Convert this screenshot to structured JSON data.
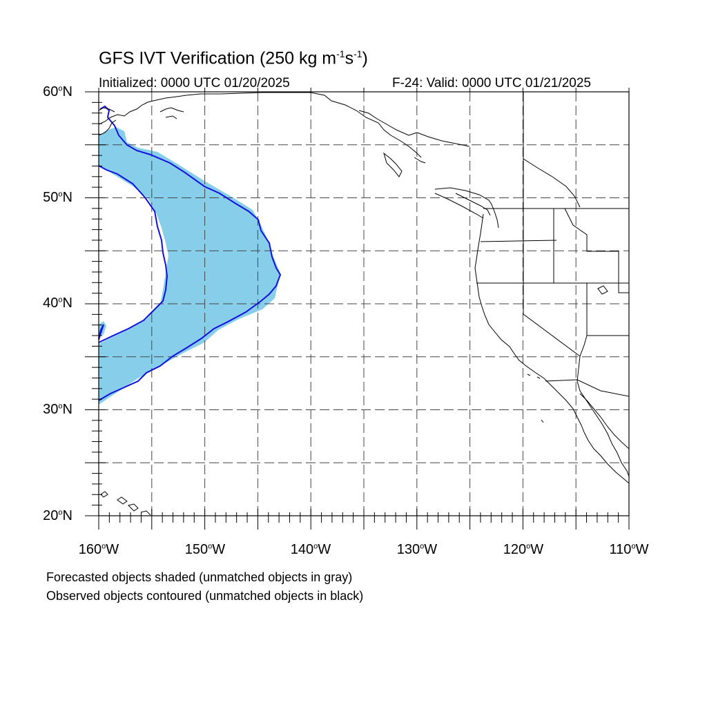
{
  "title": {
    "prefix": "GFS IVT Verification (250 kg m",
    "exp1": "-1",
    "mid": "s",
    "exp2": "-1",
    "suffix": ")"
  },
  "initialized": "Initialized: 0000 UTC 01/20/2025",
  "valid": "F-24: Valid: 0000 UTC 01/21/2025",
  "degree_symbol": "o",
  "lat_labels": [
    {
      "num": "60",
      "hem": "N"
    },
    {
      "num": "50",
      "hem": "N"
    },
    {
      "num": "40",
      "hem": "N"
    },
    {
      "num": "30",
      "hem": "N"
    },
    {
      "num": "20",
      "hem": "N"
    }
  ],
  "lon_labels": [
    {
      "num": "160",
      "hem": "W"
    },
    {
      "num": "150",
      "hem": "W"
    },
    {
      "num": "140",
      "hem": "W"
    },
    {
      "num": "130",
      "hem": "W"
    },
    {
      "num": "120",
      "hem": "W"
    },
    {
      "num": "110",
      "hem": "W"
    }
  ],
  "notes": [
    "Forecasted objects shaded (unmatched objects in gray)",
    "Observed objects contoured (unmatched objects in black)"
  ],
  "colors": {
    "forecast_fill": "#87ceeb",
    "observed_contour": "#1010e0",
    "coastline": "#000000",
    "grid": "#444444"
  },
  "map": {
    "lon_range": [
      -160,
      -110
    ],
    "lat_range": [
      20,
      60
    ],
    "grid_lon_step": 5,
    "grid_lat_step": 5,
    "grid_style": "dashed"
  }
}
